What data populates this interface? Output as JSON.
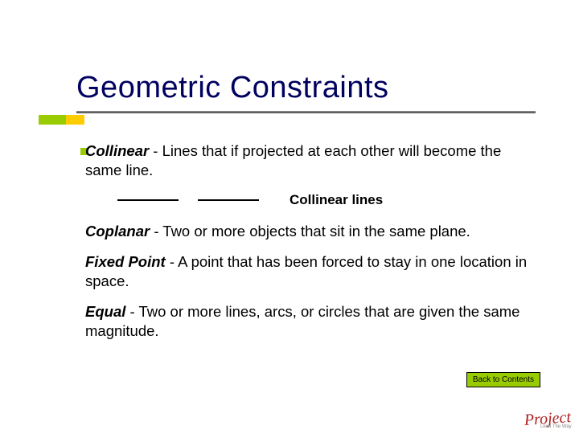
{
  "title": "Geometric Constraints",
  "definitions": [
    {
      "term": "Collinear",
      "text": " - Lines that if projected at each other will become the same line."
    },
    {
      "term": "Coplanar",
      "text": " - Two or more objects that sit in the same plane."
    },
    {
      "term": "Fixed Point",
      "text": " - A point that has been forced to stay in one location in space."
    },
    {
      "term": "Equal",
      "text": " - Two or more lines, arcs, or circles that are given the same magnitude."
    }
  ],
  "diagram_label": "Collinear lines",
  "back_button": "Back to Contents",
  "colors": {
    "title": "#000060",
    "accent_green": "#99cc00",
    "accent_yellow": "#ffcc00",
    "logo_red": "#b02020"
  },
  "logo_text": "Project"
}
